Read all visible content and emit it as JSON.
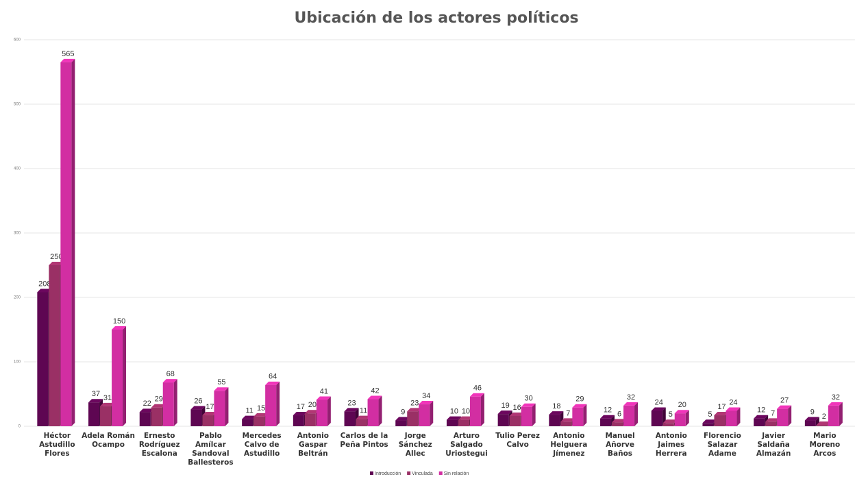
{
  "chart_data": {
    "type": "bar3d",
    "title": "Ubicación de los actores políticos",
    "categories": [
      "Héctor Astudillo Flores",
      "Adela Román Ocampo",
      "Ernesto Rodríguez Escalona",
      "Pablo Amílcar Sandoval Ballesteros",
      "Mercedes Calvo de Astudillo",
      "Antonio Gaspar Beltrán",
      "Carlos de la Peña Pintos",
      "Jorge Sánchez Allec",
      "Arturo Salgado Uriostegui",
      "Tulio Perez Calvo",
      "Antonio Helguera Jímenez",
      "Manuel Añorve Baños",
      "Antonio Jaimes Herrera",
      "Florencio Salazar Adame",
      "Javier Saldaña Almazán",
      "Mario Moreno Arcos"
    ],
    "series": [
      {
        "name": "Introducción",
        "color": "#5e0652",
        "values": [
          208,
          37,
          22,
          26,
          11,
          17,
          23,
          9,
          10,
          19,
          18,
          12,
          24,
          5,
          12,
          9
        ]
      },
      {
        "name": "Vinculada",
        "color": "#9a3065",
        "values": [
          250,
          31,
          29,
          17,
          15,
          20,
          11,
          23,
          10,
          16,
          7,
          6,
          5,
          17,
          7,
          2
        ]
      },
      {
        "name": "Sin relación",
        "color": "#d22ea2",
        "values": [
          565,
          150,
          68,
          55,
          64,
          41,
          42,
          34,
          46,
          30,
          29,
          32,
          20,
          24,
          27,
          32
        ]
      }
    ],
    "ylim": [
      0,
      600
    ],
    "yticks": [
      0,
      100,
      200,
      300,
      400,
      500,
      600
    ],
    "grid": true,
    "legend": "bottom"
  }
}
